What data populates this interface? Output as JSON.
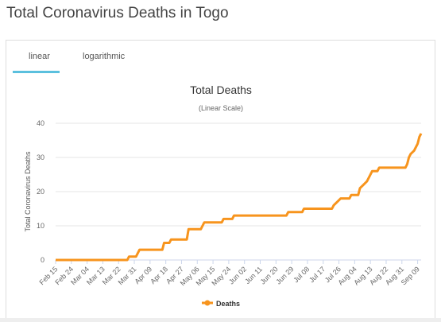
{
  "page": {
    "title": "Total Coronavirus Deaths in Togo"
  },
  "tabs": [
    {
      "label": "linear",
      "active": true
    },
    {
      "label": "logarithmic",
      "active": false
    }
  ],
  "colors": {
    "series": "#f7941d",
    "tab_accent": "#5bc0de",
    "grid": "#e6e6e6"
  },
  "chart_data": {
    "type": "line",
    "title": "Total Deaths",
    "subtitle": "(Linear Scale)",
    "ylabel": "Total Coronavirus Deaths",
    "xlabel": "",
    "ylim": [
      0,
      40
    ],
    "yticks": [
      0,
      10,
      20,
      30,
      40
    ],
    "grid": true,
    "legend": "bottom",
    "x_tick_labels": [
      "Feb 15",
      "Feb 24",
      "Mar 04",
      "Mar 13",
      "Mar 22",
      "Mar 31",
      "Apr 09",
      "Apr 18",
      "Apr 27",
      "May 06",
      "May 15",
      "May 24",
      "Jun 02",
      "Jun 11",
      "Jun 20",
      "Jun 29",
      "Jul 08",
      "Jul 17",
      "Jul 26",
      "Aug 04",
      "Aug 13",
      "Aug 22",
      "Aug 31",
      "Sep 09"
    ],
    "series": [
      {
        "name": "Deaths",
        "points": [
          [
            "Feb 15",
            0
          ],
          [
            "Mar 27",
            0
          ],
          [
            "Mar 28",
            1
          ],
          [
            "Apr 01",
            1
          ],
          [
            "Apr 02",
            2
          ],
          [
            "Apr 03",
            3
          ],
          [
            "Apr 16",
            3
          ],
          [
            "Apr 17",
            5
          ],
          [
            "Apr 20",
            5
          ],
          [
            "Apr 21",
            6
          ],
          [
            "Apr 30",
            6
          ],
          [
            "May 01",
            9
          ],
          [
            "May 08",
            9
          ],
          [
            "May 09",
            10
          ],
          [
            "May 10",
            11
          ],
          [
            "May 20",
            11
          ],
          [
            "May 21",
            12
          ],
          [
            "May 26",
            12
          ],
          [
            "May 27",
            13
          ],
          [
            "Jun 26",
            13
          ],
          [
            "Jun 27",
            14
          ],
          [
            "Jul 05",
            14
          ],
          [
            "Jul 06",
            15
          ],
          [
            "Jul 22",
            15
          ],
          [
            "Jul 23",
            16
          ],
          [
            "Jul 25",
            17
          ],
          [
            "Jul 27",
            18
          ],
          [
            "Aug 01",
            18
          ],
          [
            "Aug 02",
            19
          ],
          [
            "Aug 06",
            19
          ],
          [
            "Aug 07",
            21
          ],
          [
            "Aug 09",
            22
          ],
          [
            "Aug 11",
            23
          ],
          [
            "Aug 13",
            25
          ],
          [
            "Aug 14",
            26
          ],
          [
            "Aug 17",
            26
          ],
          [
            "Aug 18",
            27
          ],
          [
            "Sep 02",
            27
          ],
          [
            "Sep 03",
            28
          ],
          [
            "Sep 04",
            30
          ],
          [
            "Sep 05",
            31
          ],
          [
            "Sep 07",
            32
          ],
          [
            "Sep 08",
            33
          ],
          [
            "Sep 09",
            34
          ],
          [
            "Sep 10",
            36
          ],
          [
            "Sep 11",
            37
          ]
        ]
      }
    ]
  }
}
